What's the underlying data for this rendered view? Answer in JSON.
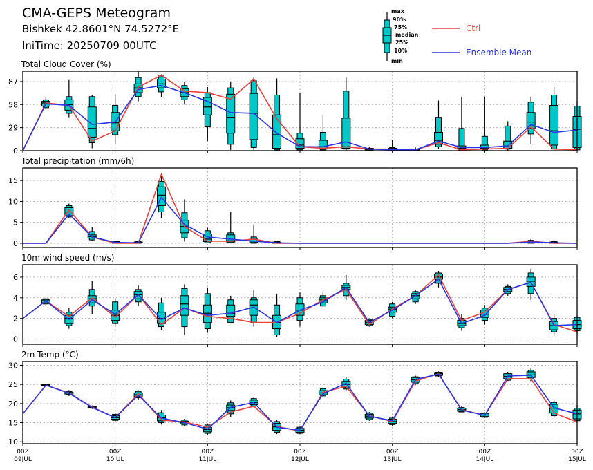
{
  "header": {
    "title": "CMA-GEPS Meteogram",
    "location": "Bishkek 42.8601°N 74.5272°E",
    "init_time": "IniTime: 20250709 00UTC"
  },
  "legend": {
    "box_labels": [
      "max",
      "90%",
      "75%",
      "median",
      "25%",
      "10%",
      "min"
    ],
    "ctrl_label": "Ctrl",
    "mean_label": "Ensemble Mean",
    "ctrl_color": "#e8413c",
    "mean_color": "#2b35e0",
    "box_color": "#00c8c8"
  },
  "chart_data": [
    {
      "type": "box",
      "title": "Total Cloud Cover (%)",
      "ylim": [
        0,
        100
      ],
      "yticks": [
        0,
        29,
        58,
        87
      ],
      "x_hours": [
        0,
        6,
        12,
        18,
        24,
        30,
        36,
        42,
        48,
        54,
        60,
        66,
        72,
        78,
        84,
        90,
        96,
        102,
        108,
        114,
        120,
        126,
        132,
        138,
        144
      ],
      "ctrl": [
        0,
        60,
        57,
        12,
        25,
        80,
        95,
        75,
        73,
        65,
        90,
        40,
        5,
        3,
        5,
        2,
        2,
        1,
        10,
        1,
        2,
        3,
        30,
        2,
        1
      ],
      "mean": [
        0,
        59,
        57,
        33,
        36,
        77,
        82,
        73,
        62,
        48,
        47,
        22,
        5,
        5,
        11,
        2,
        1,
        1,
        12,
        4,
        4,
        6,
        33,
        23,
        26
      ],
      "boxes": [
        null,
        [
          52,
          54,
          56,
          60,
          62,
          64,
          68
        ],
        [
          42,
          47,
          51,
          58,
          64,
          68,
          89
        ],
        [
          3,
          10,
          17,
          28,
          55,
          68,
          70
        ],
        [
          8,
          20,
          25,
          35,
          48,
          57,
          71
        ],
        [
          62,
          68,
          73,
          79,
          84,
          92,
          100
        ],
        [
          68,
          74,
          79,
          84,
          90,
          94,
          96
        ],
        [
          58,
          64,
          68,
          73,
          78,
          82,
          87
        ],
        [
          12,
          30,
          45,
          55,
          67,
          73,
          80
        ],
        [
          1,
          8,
          22,
          42,
          71,
          79,
          87
        ],
        [
          1,
          4,
          14,
          47,
          72,
          88,
          92
        ],
        [
          0,
          1,
          3,
          20,
          45,
          70,
          91
        ],
        [
          0,
          1,
          3,
          7,
          15,
          22,
          73
        ],
        [
          0,
          1,
          2,
          5,
          13,
          23,
          45
        ],
        [
          0,
          2,
          3,
          5,
          41,
          75,
          92
        ],
        [
          0,
          1,
          1,
          2,
          3,
          3,
          5
        ],
        [
          0,
          1,
          1,
          2,
          3,
          4,
          13
        ],
        [
          0,
          1,
          1,
          1,
          2,
          2,
          4
        ],
        [
          2,
          5,
          8,
          13,
          23,
          42,
          63
        ],
        [
          0,
          1,
          2,
          3,
          6,
          28,
          68
        ],
        [
          0,
          1,
          2,
          3,
          7,
          18,
          68
        ],
        [
          0,
          2,
          3,
          5,
          12,
          31,
          37
        ],
        [
          8,
          21,
          28,
          36,
          48,
          61,
          68
        ],
        [
          0,
          2,
          7,
          25,
          57,
          70,
          80
        ],
        [
          0,
          1,
          4,
          27,
          43,
          56,
          62
        ]
      ]
    },
    {
      "type": "box",
      "title": "Total precipitation (mm/6h)",
      "ylim": [
        -1,
        18
      ],
      "yticks": [
        0,
        5,
        10,
        15
      ],
      "x_hours": [
        0,
        6,
        12,
        18,
        24,
        30,
        36,
        42,
        48,
        54,
        60,
        66,
        72,
        78,
        84,
        90,
        96,
        102,
        108,
        114,
        120,
        126,
        132,
        138,
        144
      ],
      "ctrl": [
        0,
        0,
        8,
        1.5,
        0,
        0,
        16.5,
        4,
        0.5,
        0.5,
        1,
        0,
        0,
        0,
        0,
        0,
        0,
        0,
        0,
        0,
        0,
        0,
        0.5,
        0,
        0
      ],
      "mean": [
        0,
        0,
        7,
        1.5,
        0.2,
        0.1,
        11,
        4.5,
        1.5,
        1,
        0.5,
        0.1,
        0,
        0,
        0,
        0,
        0,
        0,
        0,
        0,
        0,
        0,
        0.3,
        0.1,
        0
      ],
      "boxes": [
        null,
        null,
        [
          6,
          6.3,
          6.6,
          7.5,
          8.5,
          9,
          9.5
        ],
        [
          0.5,
          0.8,
          1.2,
          1.6,
          2,
          2.8,
          3.8
        ],
        [
          0,
          0,
          0.1,
          0.2,
          0.4,
          0.5,
          0.6
        ],
        [
          0,
          0,
          0.1,
          0.2,
          0.3,
          0.4,
          0.5
        ],
        [
          6,
          7.5,
          9,
          11.5,
          13.5,
          14.8,
          16
        ],
        [
          0.4,
          1.3,
          2.5,
          4,
          5.5,
          7.3,
          10.5
        ],
        [
          0,
          0.1,
          0.4,
          1,
          2.2,
          3,
          3.7
        ],
        [
          0,
          0.1,
          0.3,
          0.6,
          2,
          2.5,
          7.5
        ],
        [
          0,
          0,
          0.2,
          0.5,
          1,
          1.5,
          4.5
        ],
        [
          0,
          0,
          0,
          0.1,
          0.3,
          0.4,
          0.6
        ],
        null,
        null,
        null,
        null,
        null,
        null,
        null,
        null,
        null,
        null,
        [
          0,
          0,
          0.1,
          0.3,
          0.5,
          0.7,
          1
        ],
        [
          0,
          0,
          0,
          0.1,
          0.3,
          0.4,
          0.5
        ],
        null
      ]
    },
    {
      "type": "box",
      "title": "10m wind speed (m/s)",
      "ylim": [
        -0.5,
        7.2
      ],
      "yticks": [
        0,
        2,
        4,
        6
      ],
      "x_hours": [
        0,
        6,
        12,
        18,
        24,
        30,
        36,
        42,
        48,
        54,
        60,
        66,
        72,
        78,
        84,
        90,
        96,
        102,
        108,
        114,
        120,
        126,
        132,
        138,
        144
      ],
      "ctrl": [
        2,
        3.7,
        2.2,
        4,
        2.1,
        4.3,
        1.4,
        3,
        2.2,
        2,
        1.6,
        1.6,
        2.5,
        3.8,
        4.8,
        1.4,
        2.9,
        4.2,
        6.2,
        1.8,
        2.6,
        4.8,
        5.5,
        1.4,
        0.7
      ],
      "mean": [
        2,
        3.7,
        1.9,
        3.8,
        2.4,
        4.3,
        1.9,
        3,
        2.3,
        2.5,
        3.1,
        1.6,
        2.8,
        3.6,
        5,
        1.6,
        2.8,
        4.2,
        5.8,
        1.5,
        2.3,
        4.8,
        5.5,
        1.3,
        1.4
      ],
      "boxes": [
        null,
        [
          3.2,
          3.4,
          3.5,
          3.7,
          3.8,
          3.9,
          4
        ],
        [
          1,
          1.3,
          1.5,
          2,
          2.3,
          2.6,
          3
        ],
        [
          2.4,
          3.2,
          3.5,
          3.9,
          4.2,
          4.8,
          5.6
        ],
        [
          1.2,
          1.5,
          1.8,
          2.3,
          2.8,
          3.6,
          4
        ],
        [
          3.2,
          3.6,
          3.9,
          4.3,
          4.6,
          4.8,
          5.2
        ],
        [
          0.9,
          1.2,
          1.5,
          2,
          2.6,
          3.5,
          4
        ],
        [
          0.4,
          1.2,
          2.3,
          3.4,
          4.2,
          4.9,
          5.3
        ],
        [
          0.6,
          1,
          1.6,
          2.5,
          3.3,
          4.4,
          5
        ],
        [
          1.5,
          1.6,
          2.2,
          2.5,
          3.3,
          3.8,
          4.2
        ],
        [
          1.2,
          1.6,
          2.3,
          3.3,
          3.8,
          4,
          4.8
        ],
        [
          0.2,
          0.4,
          1,
          1.6,
          2.3,
          3.3,
          4.4
        ],
        [
          1.2,
          1.8,
          2.3,
          2.8,
          3.4,
          4,
          4.5
        ],
        [
          3.1,
          3.2,
          3.5,
          3.8,
          4,
          4.2,
          4.6
        ],
        [
          3.8,
          4.2,
          4.8,
          5,
          5.2,
          5.4,
          6.2
        ],
        [
          1.2,
          1.3,
          1.4,
          1.6,
          1.8,
          1.9,
          2
        ],
        [
          2,
          2.2,
          2.6,
          2.9,
          3.1,
          3.4,
          3.6
        ],
        [
          3.4,
          3.6,
          3.9,
          4.2,
          4.4,
          4.6,
          4.8
        ],
        [
          5,
          5.4,
          5.8,
          6,
          6.3,
          6.4,
          6.6
        ],
        [
          0.8,
          1.1,
          1.3,
          1.5,
          1.8,
          2,
          2.4
        ],
        [
          1.4,
          1.8,
          2.1,
          2.4,
          2.8,
          3,
          3.3
        ],
        [
          4.2,
          4.4,
          4.6,
          4.8,
          5,
          5.1,
          5.3
        ],
        [
          3.8,
          4.4,
          5.1,
          5.6,
          6,
          6.4,
          6.8
        ],
        [
          0.3,
          0.7,
          0.9,
          1.3,
          1.7,
          2,
          2.4
        ],
        [
          0.5,
          0.8,
          1,
          1.4,
          1.8,
          2.1,
          2.3
        ]
      ]
    },
    {
      "type": "box",
      "title": "2m Temp (°C)",
      "ylim": [
        9.5,
        31
      ],
      "yticks": [
        10,
        15,
        20,
        25,
        30
      ],
      "x_hours": [
        0,
        6,
        12,
        18,
        24,
        30,
        36,
        42,
        48,
        54,
        60,
        66,
        72,
        78,
        84,
        90,
        96,
        102,
        108,
        114,
        120,
        126,
        132,
        138,
        144
      ],
      "ctrl": [
        17.3,
        24.8,
        22.8,
        19.1,
        16.3,
        22.6,
        15.7,
        15.2,
        13.8,
        17.8,
        19.3,
        14,
        12.8,
        23,
        24.5,
        16.8,
        15.3,
        25.9,
        27.8,
        18.4,
        16.9,
        26.5,
        26.5,
        17.5,
        15.2
      ],
      "mean": [
        17.3,
        24.8,
        22.7,
        19,
        16.3,
        22.2,
        16.2,
        15,
        13.3,
        19,
        20.3,
        13.8,
        13,
        22.6,
        25.3,
        16.7,
        15.5,
        26.3,
        27.7,
        18.3,
        16.9,
        27.2,
        27.4,
        18.9,
        17.3
      ],
      "boxes": [
        null,
        [
          24.6,
          24.7,
          24.8,
          24.9,
          24.9,
          25,
          25
        ],
        [
          22,
          22.3,
          22.5,
          22.8,
          23,
          23.2,
          23.5
        ],
        [
          18.6,
          18.8,
          18.9,
          19,
          19.2,
          19.3,
          19.5
        ],
        [
          15.3,
          15.6,
          15.9,
          16.3,
          16.8,
          17.2,
          17.6
        ],
        [
          21,
          21.5,
          21.8,
          22.3,
          22.8,
          23.2,
          23.5
        ],
        [
          14.5,
          15,
          15.5,
          16.3,
          17,
          17.6,
          18.3
        ],
        [
          14,
          14.4,
          14.7,
          15,
          15.4,
          15.7,
          16
        ],
        [
          11.8,
          12.2,
          12.6,
          13.2,
          13.8,
          14.4,
          14.8
        ],
        [
          16.5,
          17.3,
          18.2,
          18.9,
          19.6,
          20.2,
          20.8
        ],
        [
          19,
          19.3,
          19.7,
          20.3,
          20.9,
          21.3,
          21.6
        ],
        [
          12,
          12.5,
          13,
          13.9,
          14.8,
          15.3,
          15.8
        ],
        [
          12,
          12.2,
          12.5,
          13,
          13.5,
          13.8,
          14
        ],
        [
          21.5,
          22,
          22.3,
          22.8,
          23.4,
          23.9,
          24.3
        ],
        [
          23.3,
          23.8,
          24.2,
          25,
          25.8,
          26.4,
          27
        ],
        [
          15.5,
          15.8,
          16.2,
          16.7,
          17.2,
          17.5,
          17.8
        ],
        [
          14.2,
          14.5,
          14.8,
          15.3,
          15.9,
          16.2,
          16.6
        ],
        [
          24.8,
          25.2,
          25.6,
          26.2,
          26.8,
          27,
          27.3
        ],
        [
          27,
          27.2,
          27.4,
          27.8,
          28.1,
          28.2,
          28.4
        ],
        [
          17.7,
          17.8,
          18,
          18.4,
          18.8,
          19,
          19.2
        ],
        [
          16.3,
          16.4,
          16.6,
          17,
          17.4,
          17.5,
          17.7
        ],
        [
          25.9,
          26.1,
          26.5,
          27.1,
          27.8,
          28,
          28.3
        ],
        [
          25.8,
          26.4,
          26.8,
          27.5,
          28.3,
          28.7,
          29.2
        ],
        [
          16.3,
          16.8,
          17.5,
          18.8,
          19.8,
          20.3,
          21.1
        ],
        [
          15,
          15.5,
          16,
          17.3,
          18.3,
          18.8,
          19.6
        ]
      ]
    }
  ],
  "x_axis": {
    "ticks": [
      {
        "hour": 0,
        "top": "00Z",
        "bottom": "09JUL"
      },
      {
        "hour": 24,
        "top": "00Z",
        "bottom": "10JUL"
      },
      {
        "hour": 48,
        "top": "00Z",
        "bottom": "11JUL"
      },
      {
        "hour": 72,
        "top": "00Z",
        "bottom": "12JUL"
      },
      {
        "hour": 96,
        "top": "00Z",
        "bottom": "13JUL"
      },
      {
        "hour": 120,
        "top": "00Z",
        "bottom": "14JUL"
      },
      {
        "hour": 144,
        "top": "00Z",
        "bottom": "15JUL"
      }
    ],
    "range_hours": [
      0,
      144
    ]
  }
}
